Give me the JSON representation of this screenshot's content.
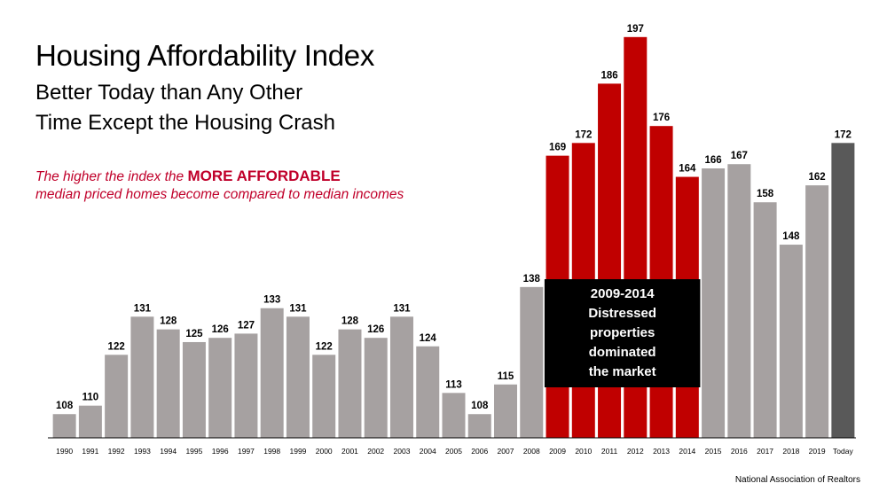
{
  "header": {
    "title": "Housing Affordability Index",
    "subtitle_line1": "Better Today than Any Other",
    "subtitle_line2": "Time Except the Housing Crash"
  },
  "note": {
    "line1_prefix": "The higher the index the ",
    "line1_emphasis": "MORE AFFORDABLE",
    "line2": "median priced homes become compared to median incomes"
  },
  "callout": {
    "lines": [
      "2009-2014",
      "Distressed",
      "properties",
      "dominated",
      "the market"
    ]
  },
  "source": "National Association of Realtors",
  "colors": {
    "normal": "#a6a1a1",
    "distressed": "#c00000",
    "today": "#595959",
    "note_text": "#c0002a"
  },
  "chart_data": {
    "type": "bar",
    "title": "Housing Affordability Index",
    "categories": [
      "1990",
      "1991",
      "1992",
      "1993",
      "1994",
      "1995",
      "1996",
      "1997",
      "1998",
      "1999",
      "2000",
      "2001",
      "2002",
      "2003",
      "2004",
      "2005",
      "2006",
      "2007",
      "2008",
      "2009",
      "2010",
      "2011",
      "2012",
      "2013",
      "2014",
      "2015",
      "2016",
      "2017",
      "2018",
      "2019",
      "Today"
    ],
    "values": [
      108,
      110,
      122,
      131,
      128,
      125,
      126,
      127,
      133,
      131,
      122,
      128,
      126,
      131,
      124,
      113,
      108,
      115,
      138,
      169,
      172,
      186,
      197,
      176,
      164,
      166,
      167,
      158,
      148,
      162,
      172
    ],
    "distressed_range": [
      "2009",
      "2014"
    ],
    "xlabel": "",
    "ylabel": "",
    "ylim": [
      100,
      197
    ],
    "grid": false,
    "legend": "none",
    "data_labels": true
  }
}
